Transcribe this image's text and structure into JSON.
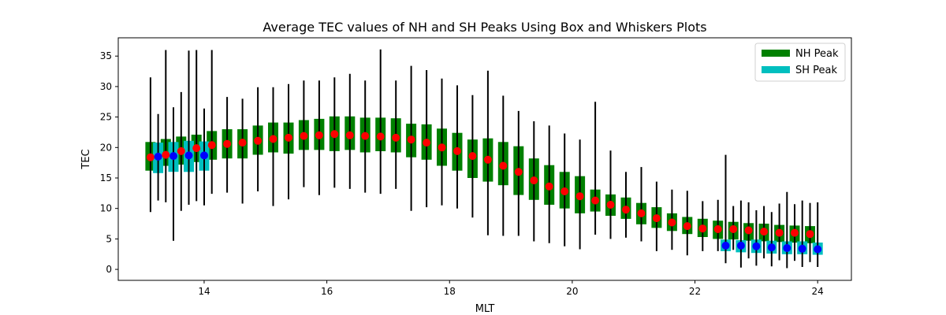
{
  "chart_data": {
    "type": "box",
    "title": "Average TEC values of NH and SH Peaks Using Box and Whiskers Plots",
    "xlabel": "MLT",
    "ylabel": "TEC",
    "xlim": [
      12.6,
      24.55
    ],
    "ylim": [
      -1.8,
      38.0
    ],
    "xticks": [
      14,
      16,
      18,
      20,
      22,
      24
    ],
    "yticks": [
      0,
      5,
      10,
      15,
      20,
      25,
      30,
      35
    ],
    "legend_position": "top-right",
    "series": [
      {
        "name": "NH Peak",
        "box_color": "#008000",
        "mean_color": "#ff0000",
        "x": [
          13.125,
          13.375,
          13.625,
          13.875,
          14.125,
          14.375,
          14.625,
          14.875,
          15.125,
          15.375,
          15.625,
          15.875,
          16.125,
          16.375,
          16.625,
          16.875,
          17.125,
          17.375,
          17.625,
          17.875,
          18.125,
          18.375,
          18.625,
          18.875,
          19.125,
          19.375,
          19.625,
          19.875,
          20.125,
          20.375,
          20.625,
          20.875,
          21.125,
          21.375,
          21.625,
          21.875,
          22.125,
          22.375,
          22.625,
          22.875,
          23.125,
          23.375,
          23.625,
          23.875
        ],
        "whisker_low": [
          9.4,
          11.0,
          9.6,
          11.2,
          12.4,
          12.6,
          10.8,
          12.8,
          10.4,
          11.5,
          13.5,
          12.2,
          13.4,
          13.2,
          12.6,
          12.4,
          13.2,
          9.6,
          10.2,
          10.5,
          10.0,
          8.5,
          5.6,
          5.5,
          5.5,
          4.6,
          4.3,
          3.8,
          3.3,
          5.7,
          5.0,
          5.2,
          4.6,
          3.0,
          3.2,
          2.3,
          3.0,
          3.0,
          3.2,
          1.8,
          1.8,
          1.5,
          1.4,
          1.2
        ],
        "q1": [
          16.2,
          17.0,
          17.2,
          17.6,
          18.0,
          18.2,
          18.2,
          18.8,
          19.2,
          19.0,
          19.6,
          19.6,
          19.4,
          19.6,
          19.2,
          19.4,
          19.2,
          18.4,
          18.0,
          17.0,
          16.2,
          15.0,
          14.4,
          13.8,
          12.2,
          11.4,
          10.6,
          10.0,
          9.2,
          9.5,
          8.8,
          8.3,
          7.4,
          6.8,
          6.3,
          5.8,
          5.3,
          5.0,
          4.9,
          4.7,
          4.6,
          4.5,
          4.4,
          4.3
        ],
        "q3": [
          20.9,
          21.4,
          21.8,
          22.1,
          22.7,
          23.0,
          23.0,
          23.6,
          24.1,
          24.1,
          24.5,
          24.7,
          25.1,
          25.1,
          24.9,
          24.9,
          24.8,
          23.9,
          23.8,
          23.1,
          22.4,
          21.3,
          21.5,
          20.9,
          20.2,
          18.2,
          17.1,
          16.0,
          15.3,
          13.1,
          12.3,
          11.8,
          10.9,
          10.2,
          9.2,
          8.6,
          8.3,
          8.0,
          7.8,
          7.6,
          7.5,
          7.3,
          7.2,
          7.1
        ],
        "whisker_high": [
          31.5,
          36.0,
          29.1,
          36.0,
          36.0,
          28.3,
          28.0,
          29.9,
          29.9,
          30.4,
          31.0,
          31.0,
          31.5,
          32.1,
          31.0,
          36.1,
          31.0,
          33.4,
          32.7,
          31.3,
          30.2,
          28.6,
          32.6,
          28.5,
          26.0,
          24.3,
          23.6,
          22.3,
          21.3,
          27.5,
          19.5,
          16.0,
          16.8,
          14.4,
          13.1,
          12.9,
          11.2,
          11.4,
          10.4,
          11.0,
          10.4,
          10.8,
          10.7,
          10.9
        ],
        "mean": [
          18.4,
          18.8,
          19.4,
          19.9,
          20.4,
          20.6,
          20.8,
          21.1,
          21.4,
          21.6,
          21.9,
          22.0,
          22.2,
          22.0,
          21.9,
          21.8,
          21.6,
          21.3,
          20.8,
          20.0,
          19.4,
          18.6,
          18.0,
          17.0,
          16.0,
          14.6,
          13.6,
          12.8,
          12.0,
          11.3,
          10.6,
          9.8,
          9.2,
          8.4,
          7.7,
          7.1,
          6.7,
          6.6,
          6.6,
          6.4,
          6.2,
          6.0,
          6.0,
          5.8
        ]
      },
      {
        "name": "SH Peak",
        "box_color": "#00bfbf",
        "mean_color": "#0000ff",
        "x": [
          13.25,
          13.5,
          13.75,
          14.0,
          22.5,
          22.75,
          23.0,
          23.25,
          23.5,
          23.75,
          24.0
        ],
        "whisker_low": [
          11.3,
          4.7,
          10.6,
          10.5,
          1.0,
          0.3,
          0.6,
          0.5,
          0.2,
          0.4,
          0.4
        ],
        "q1": [
          15.8,
          16.0,
          16.0,
          16.2,
          3.0,
          2.8,
          2.7,
          2.6,
          2.5,
          2.5,
          2.4
        ],
        "q3": [
          20.8,
          20.9,
          21.1,
          21.0,
          4.9,
          4.8,
          4.9,
          4.7,
          4.6,
          4.6,
          4.4
        ],
        "whisker_high": [
          25.5,
          26.6,
          35.9,
          26.4,
          18.8,
          11.3,
          9.7,
          9.4,
          12.7,
          11.3,
          11.0
        ],
        "mean": [
          18.5,
          18.6,
          18.7,
          18.7,
          3.9,
          3.9,
          3.8,
          3.6,
          3.5,
          3.4,
          3.3
        ]
      }
    ]
  }
}
